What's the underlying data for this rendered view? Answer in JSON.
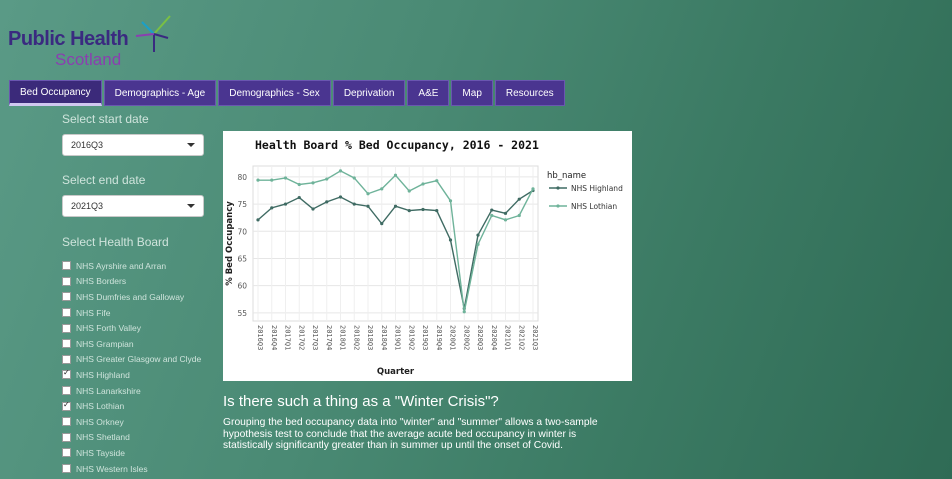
{
  "logo": {
    "line1": "Public Health",
    "line2": "Scotland"
  },
  "tabs": [
    {
      "label": "Bed Occupancy",
      "active": true
    },
    {
      "label": "Demographics - Age",
      "active": false
    },
    {
      "label": "Demographics - Sex",
      "active": false
    },
    {
      "label": "Deprivation",
      "active": false
    },
    {
      "label": "A&E",
      "active": false
    },
    {
      "label": "Map",
      "active": false
    },
    {
      "label": "Resources",
      "active": false
    }
  ],
  "sidebar": {
    "start_label": "Select start date",
    "start_value": "2016Q3",
    "end_label": "Select end date",
    "end_value": "2021Q3",
    "board_label": "Select Health Board",
    "boards": [
      {
        "label": "NHS Ayrshire and Arran",
        "checked": false
      },
      {
        "label": "NHS Borders",
        "checked": false
      },
      {
        "label": "NHS Dumfries and Galloway",
        "checked": false
      },
      {
        "label": "NHS Fife",
        "checked": false
      },
      {
        "label": "NHS Forth Valley",
        "checked": false
      },
      {
        "label": "NHS Grampian",
        "checked": false
      },
      {
        "label": "NHS Greater Glasgow and Clyde",
        "checked": false
      },
      {
        "label": "NHS Highland",
        "checked": true
      },
      {
        "label": "NHS Lanarkshire",
        "checked": false
      },
      {
        "label": "NHS Lothian",
        "checked": true
      },
      {
        "label": "NHS Orkney",
        "checked": false
      },
      {
        "label": "NHS Shetland",
        "checked": false
      },
      {
        "label": "NHS Tayside",
        "checked": false
      },
      {
        "label": "NHS Western Isles",
        "checked": false
      }
    ]
  },
  "chart_data": {
    "type": "line",
    "title": "Health Board % Bed Occupancy, 2016 - 2021",
    "xlabel": "Quarter",
    "ylabel": "% Bed Occupancy",
    "legend_title": "hb_name",
    "legend_position": "right",
    "ylim": [
      53.5,
      82
    ],
    "yticks": [
      55,
      60,
      65,
      70,
      75,
      80
    ],
    "grid": true,
    "categories": [
      "2016Q3",
      "2016Q4",
      "2017Q1",
      "2017Q2",
      "2017Q3",
      "2017Q4",
      "2018Q1",
      "2018Q2",
      "2018Q3",
      "2018Q4",
      "2019Q1",
      "2019Q2",
      "2019Q3",
      "2019Q4",
      "2020Q1",
      "2020Q2",
      "2020Q3",
      "2020Q4",
      "2021Q1",
      "2021Q2",
      "2021Q3"
    ],
    "series": [
      {
        "name": "NHS Highland",
        "color": "#3f6b63",
        "values": [
          72.1,
          74.3,
          75.0,
          76.2,
          74.1,
          75.4,
          76.3,
          75.0,
          74.6,
          71.4,
          74.6,
          73.8,
          74.0,
          73.8,
          68.4,
          55.8,
          69.3,
          73.9,
          73.3,
          75.9,
          77.5
        ]
      },
      {
        "name": "NHS Lothian",
        "color": "#6fb39a",
        "values": [
          79.4,
          79.4,
          79.8,
          78.6,
          78.9,
          79.6,
          81.1,
          79.8,
          76.9,
          77.8,
          80.3,
          77.4,
          78.7,
          79.3,
          75.6,
          55.2,
          67.6,
          72.9,
          72.1,
          72.9,
          77.8
        ]
      }
    ]
  },
  "content": {
    "heading": "Is there such a thing as a \"Winter Crisis\"?",
    "paragraph": "Grouping the bed occupancy data into \"winter\" and \"summer\" allows a two-sample hypothesis test to conclude that the average acute bed occupancy in winter is statistically significantly greater than in summer up until the onset of Covid."
  }
}
